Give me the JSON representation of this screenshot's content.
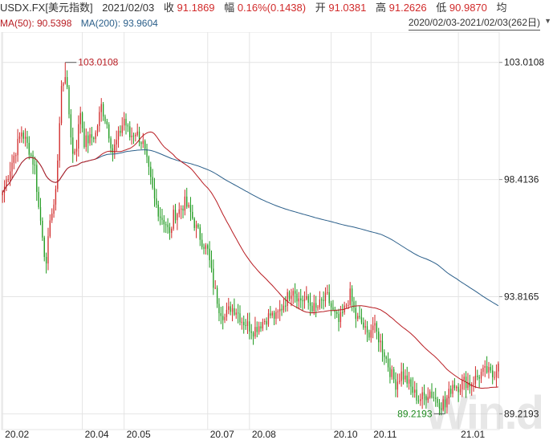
{
  "header": {
    "symbol": "USDX.FX[美元指数]",
    "date": "2021/02/03",
    "close_label": "收",
    "close_value": "91.1869",
    "change_label": "幅",
    "change_value": "0.16%(0.1438)",
    "open_label": "开",
    "open_value": "91.0381",
    "high_label": "高",
    "high_value": "91.2626",
    "low_label": "低",
    "low_value": "90.9870",
    "avg_label": "均"
  },
  "indicators": {
    "ma50_label": "MA(50): 90.5398",
    "ma200_label": "MA(200): 93.9604",
    "range_label": "2020/02/03-2021/02/03(262日)"
  },
  "watermark": "Win.d",
  "colors": {
    "up": "#d12a2a",
    "down": "#1f9a1f",
    "ma50": "#b81c22",
    "ma200": "#2b5f8a",
    "grid": "#e4e4e4"
  },
  "chart_data": {
    "type": "candlestick",
    "ylim": [
      88.6,
      104.2
    ],
    "y_ticks": [
      "103.0108",
      "98.4136",
      "93.8165",
      "89.2193"
    ],
    "y_tick_values": [
      103.0108,
      98.4136,
      93.8165,
      89.2193
    ],
    "x_ticks": [
      "20.02",
      "20.04",
      "20.05",
      "20.07",
      "20.08",
      "20.10",
      "20.11",
      "21.01"
    ],
    "x_tick_index": [
      0,
      42,
      64,
      108,
      130,
      173,
      194,
      240
    ],
    "n_days": 262,
    "annotations": [
      {
        "text": "103.0108",
        "index": 33,
        "value": 103.0108,
        "type": "high"
      },
      {
        "text": "89.2193",
        "index": 233,
        "value": 89.2193,
        "type": "low"
      }
    ],
    "price_path": [
      [
        0,
        97.9
      ],
      [
        5,
        99.1
      ],
      [
        10,
        100.3
      ],
      [
        14,
        99.6
      ],
      [
        17,
        98.9
      ],
      [
        19,
        97.3
      ],
      [
        21,
        96.3
      ],
      [
        23,
        94.9
      ],
      [
        25,
        97.0
      ],
      [
        27,
        97.2
      ],
      [
        29,
        99.2
      ],
      [
        31,
        102.0
      ],
      [
        33,
        102.6
      ],
      [
        35,
        101.0
      ],
      [
        37,
        99.4
      ],
      [
        39,
        99.8
      ],
      [
        41,
        101.1
      ],
      [
        43,
        99.9
      ],
      [
        46,
        100.0
      ],
      [
        49,
        100.2
      ],
      [
        52,
        101.3
      ],
      [
        55,
        100.6
      ],
      [
        58,
        99.5
      ],
      [
        61,
        100.1
      ],
      [
        64,
        100.8
      ],
      [
        67,
        100.1
      ],
      [
        70,
        100.3
      ],
      [
        74,
        99.8
      ],
      [
        77,
        98.7
      ],
      [
        80,
        97.6
      ],
      [
        83,
        97.0
      ],
      [
        86,
        96.7
      ],
      [
        88,
        96.2
      ],
      [
        90,
        97.0
      ],
      [
        93,
        97.2
      ],
      [
        96,
        97.5
      ],
      [
        99,
        97.1
      ],
      [
        102,
        96.5
      ],
      [
        105,
        96.0
      ],
      [
        108,
        95.6
      ],
      [
        111,
        94.3
      ],
      [
        114,
        93.4
      ],
      [
        117,
        93.0
      ],
      [
        120,
        93.4
      ],
      [
        123,
        93.3
      ],
      [
        126,
        92.9
      ],
      [
        129,
        92.7
      ],
      [
        132,
        92.5
      ],
      [
        135,
        92.7
      ],
      [
        138,
        92.9
      ],
      [
        141,
        93.1
      ],
      [
        144,
        93.0
      ],
      [
        147,
        93.4
      ],
      [
        150,
        93.8
      ],
      [
        153,
        94.2
      ],
      [
        156,
        93.7
      ],
      [
        159,
        93.7
      ],
      [
        162,
        93.5
      ],
      [
        165,
        93.3
      ],
      [
        168,
        93.6
      ],
      [
        171,
        93.8
      ],
      [
        174,
        93.2
      ],
      [
        177,
        92.8
      ],
      [
        180,
        93.3
      ],
      [
        183,
        93.9
      ],
      [
        186,
        93.0
      ],
      [
        189,
        92.8
      ],
      [
        192,
        92.3
      ],
      [
        195,
        92.7
      ],
      [
        198,
        92.2
      ],
      [
        201,
        91.6
      ],
      [
        204,
        90.9
      ],
      [
        207,
        90.4
      ],
      [
        210,
        90.8
      ],
      [
        213,
        90.5
      ],
      [
        216,
        90.1
      ],
      [
        219,
        89.8
      ],
      [
        222,
        89.9
      ],
      [
        225,
        90.1
      ],
      [
        228,
        89.8
      ],
      [
        231,
        89.6
      ],
      [
        234,
        89.8
      ],
      [
        237,
        90.4
      ],
      [
        240,
        90.3
      ],
      [
        243,
        90.5
      ],
      [
        246,
        90.4
      ],
      [
        249,
        90.6
      ],
      [
        252,
        90.8
      ],
      [
        255,
        90.9
      ],
      [
        258,
        90.7
      ],
      [
        261,
        91.19
      ]
    ]
  }
}
